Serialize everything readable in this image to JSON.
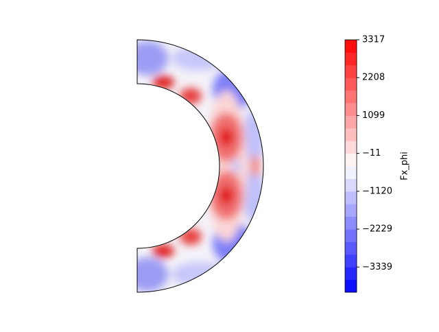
{
  "chart_data": {
    "type": "contour",
    "colorbar_label": "Fx_phi",
    "ylim": [
      -4077,
      3317
    ],
    "yticks": [
      3317,
      2208,
      1099,
      {
        "value": -11,
        "label": "−11"
      },
      {
        "value": -1120,
        "label": "−1120"
      },
      {
        "value": -2229,
        "label": "−2229"
      },
      {
        "value": -3339,
        "label": "−3339"
      }
    ],
    "colormap": [
      "#0000ff",
      "#ffffff",
      "#ff0000"
    ]
  }
}
